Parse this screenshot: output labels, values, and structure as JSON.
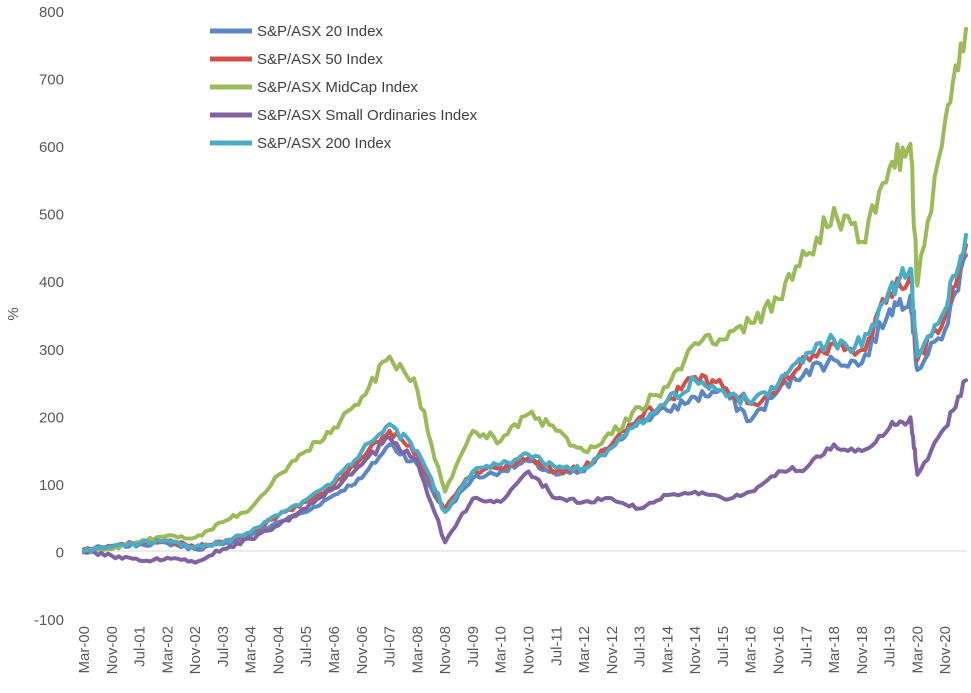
{
  "chart_data": {
    "type": "line",
    "ylabel": "%",
    "ylim": [
      -100,
      800
    ],
    "yticks": [
      -100,
      0,
      100,
      200,
      300,
      400,
      500,
      600,
      700,
      800
    ],
    "xticks": [
      "Mar-00",
      "Nov-00",
      "Jul-01",
      "Mar-02",
      "Nov-02",
      "Jul-03",
      "Mar-04",
      "Nov-04",
      "Jul-05",
      "Mar-06",
      "Nov-06",
      "Jul-07",
      "Mar-08",
      "Nov-08",
      "Jul-09",
      "Mar-10",
      "Nov-10",
      "Jul-11",
      "Mar-12",
      "Nov-12",
      "Jul-13",
      "Mar-14",
      "Nov-14",
      "Jul-15",
      "Mar-16",
      "Nov-16",
      "Jul-17",
      "Mar-18",
      "Nov-18",
      "Jul-19",
      "Mar-20",
      "Nov-20"
    ],
    "legend_position": "top-left",
    "grid": false,
    "series": [
      {
        "name": "S&P/ASX 20 Index",
        "color": "#5b87c5",
        "points": [
          [
            "Mar-00",
            5
          ],
          [
            "Nov-00",
            8
          ],
          [
            "Jul-01",
            12
          ],
          [
            "Mar-02",
            14
          ],
          [
            "Nov-02",
            5
          ],
          [
            "Jul-03",
            12
          ],
          [
            "Mar-04",
            25
          ],
          [
            "Nov-04",
            45
          ],
          [
            "Jul-05",
            60
          ],
          [
            "Mar-06",
            85
          ],
          [
            "Nov-06",
            110
          ],
          [
            "Jul-07",
            160
          ],
          [
            "Mar-08",
            130
          ],
          [
            "Nov-08",
            60
          ],
          [
            "Jul-09",
            110
          ],
          [
            "Mar-10",
            120
          ],
          [
            "Nov-10",
            135
          ],
          [
            "Jul-11",
            115
          ],
          [
            "Mar-12",
            120
          ],
          [
            "Nov-12",
            160
          ],
          [
            "Jul-13",
            195
          ],
          [
            "Mar-14",
            210
          ],
          [
            "Nov-14",
            230
          ],
          [
            "Jul-15",
            240
          ],
          [
            "Mar-16",
            195
          ],
          [
            "Nov-16",
            240
          ],
          [
            "Jul-17",
            270
          ],
          [
            "Mar-18",
            285
          ],
          [
            "Nov-18",
            280
          ],
          [
            "Jul-19",
            360
          ],
          [
            "Jan-20",
            380
          ],
          [
            "Mar-20",
            270
          ],
          [
            "Nov-20",
            330
          ],
          [
            "May-21",
            440
          ]
        ]
      },
      {
        "name": "S&P/ASX 50 Index",
        "color": "#d0504a",
        "points": [
          [
            "Mar-00",
            3
          ],
          [
            "Nov-00",
            10
          ],
          [
            "Jul-01",
            15
          ],
          [
            "Mar-02",
            17
          ],
          [
            "Nov-02",
            8
          ],
          [
            "Jul-03",
            15
          ],
          [
            "Mar-04",
            30
          ],
          [
            "Nov-04",
            55
          ],
          [
            "Jul-05",
            75
          ],
          [
            "Mar-06",
            100
          ],
          [
            "Nov-06",
            140
          ],
          [
            "Jul-07",
            180
          ],
          [
            "Mar-08",
            145
          ],
          [
            "Nov-08",
            65
          ],
          [
            "Jul-09",
            120
          ],
          [
            "Mar-10",
            125
          ],
          [
            "Nov-10",
            140
          ],
          [
            "Jul-11",
            120
          ],
          [
            "Mar-12",
            125
          ],
          [
            "Nov-12",
            160
          ],
          [
            "Jul-13",
            200
          ],
          [
            "Mar-14",
            225
          ],
          [
            "Nov-14",
            260
          ],
          [
            "Jul-15",
            245
          ],
          [
            "Mar-16",
            220
          ],
          [
            "Nov-16",
            245
          ],
          [
            "Jul-17",
            290
          ],
          [
            "Mar-18",
            310
          ],
          [
            "Nov-18",
            300
          ],
          [
            "Jul-19",
            385
          ],
          [
            "Jan-20",
            410
          ],
          [
            "Mar-20",
            285
          ],
          [
            "Nov-20",
            350
          ],
          [
            "May-21",
            455
          ]
        ]
      },
      {
        "name": "S&P/ASX MidCap Index",
        "color": "#9bbb59",
        "points": [
          [
            "Mar-00",
            2
          ],
          [
            "Nov-00",
            5
          ],
          [
            "Jul-01",
            15
          ],
          [
            "Mar-02",
            25
          ],
          [
            "Nov-02",
            22
          ],
          [
            "Jul-03",
            45
          ],
          [
            "Mar-04",
            65
          ],
          [
            "Nov-04",
            115
          ],
          [
            "Jul-05",
            150
          ],
          [
            "Mar-06",
            185
          ],
          [
            "Nov-06",
            230
          ],
          [
            "Jul-07",
            290
          ],
          [
            "Mar-08",
            240
          ],
          [
            "Nov-08",
            90
          ],
          [
            "Jul-09",
            180
          ],
          [
            "Mar-10",
            165
          ],
          [
            "Nov-10",
            205
          ],
          [
            "Jul-11",
            180
          ],
          [
            "Mar-12",
            150
          ],
          [
            "Nov-12",
            175
          ],
          [
            "Jul-13",
            215
          ],
          [
            "Mar-14",
            245
          ],
          [
            "Nov-14",
            310
          ],
          [
            "Jul-15",
            315
          ],
          [
            "Mar-16",
            340
          ],
          [
            "Nov-16",
            375
          ],
          [
            "Jul-17",
            440
          ],
          [
            "Mar-18",
            510
          ],
          [
            "Nov-18",
            460
          ],
          [
            "Jul-19",
            570
          ],
          [
            "Jan-20",
            605
          ],
          [
            "Mar-20",
            395
          ],
          [
            "Nov-20",
            640
          ],
          [
            "May-21",
            775
          ]
        ]
      },
      {
        "name": "S&P/ASX Small Ordinaries Index",
        "color": "#8064a2",
        "points": [
          [
            "Mar-00",
            0
          ],
          [
            "Nov-00",
            -5
          ],
          [
            "Jul-01",
            -12
          ],
          [
            "Mar-02",
            -8
          ],
          [
            "Nov-02",
            -15
          ],
          [
            "Jul-03",
            5
          ],
          [
            "Mar-04",
            20
          ],
          [
            "Nov-04",
            40
          ],
          [
            "Jul-05",
            65
          ],
          [
            "Mar-06",
            95
          ],
          [
            "Nov-06",
            130
          ],
          [
            "Jul-07",
            170
          ],
          [
            "Mar-08",
            135
          ],
          [
            "Nov-08",
            15
          ],
          [
            "Jul-09",
            80
          ],
          [
            "Mar-10",
            75
          ],
          [
            "Nov-10",
            120
          ],
          [
            "Jul-11",
            80
          ],
          [
            "Mar-12",
            75
          ],
          [
            "Nov-12",
            80
          ],
          [
            "Jul-13",
            65
          ],
          [
            "Mar-14",
            85
          ],
          [
            "Nov-14",
            90
          ],
          [
            "Jul-15",
            80
          ],
          [
            "Mar-16",
            90
          ],
          [
            "Nov-16",
            120
          ],
          [
            "Jul-17",
            125
          ],
          [
            "Mar-18",
            160
          ],
          [
            "Nov-18",
            150
          ],
          [
            "Jul-19",
            185
          ],
          [
            "Jan-20",
            200
          ],
          [
            "Mar-20",
            115
          ],
          [
            "Nov-20",
            185
          ],
          [
            "May-21",
            255
          ]
        ]
      },
      {
        "name": "S&P/ASX 200 Index",
        "color": "#4bacc6",
        "points": [
          [
            "Mar-00",
            2
          ],
          [
            "Nov-00",
            8
          ],
          [
            "Jul-01",
            14
          ],
          [
            "Mar-02",
            18
          ],
          [
            "Nov-02",
            8
          ],
          [
            "Jul-03",
            15
          ],
          [
            "Mar-04",
            30
          ],
          [
            "Nov-04",
            55
          ],
          [
            "Jul-05",
            78
          ],
          [
            "Mar-06",
            105
          ],
          [
            "Nov-06",
            150
          ],
          [
            "Jul-07",
            190
          ],
          [
            "Mar-08",
            150
          ],
          [
            "Nov-08",
            60
          ],
          [
            "Jul-09",
            120
          ],
          [
            "Mar-10",
            130
          ],
          [
            "Nov-10",
            145
          ],
          [
            "Jul-11",
            125
          ],
          [
            "Mar-12",
            125
          ],
          [
            "Nov-12",
            155
          ],
          [
            "Jul-13",
            195
          ],
          [
            "Mar-14",
            225
          ],
          [
            "Nov-14",
            255
          ],
          [
            "Jul-15",
            240
          ],
          [
            "Mar-16",
            220
          ],
          [
            "Nov-16",
            250
          ],
          [
            "Jul-17",
            295
          ],
          [
            "Mar-18",
            315
          ],
          [
            "Nov-18",
            305
          ],
          [
            "Jul-19",
            390
          ],
          [
            "Jan-20",
            420
          ],
          [
            "Mar-20",
            290
          ],
          [
            "Nov-20",
            360
          ],
          [
            "May-21",
            470
          ]
        ]
      }
    ]
  }
}
